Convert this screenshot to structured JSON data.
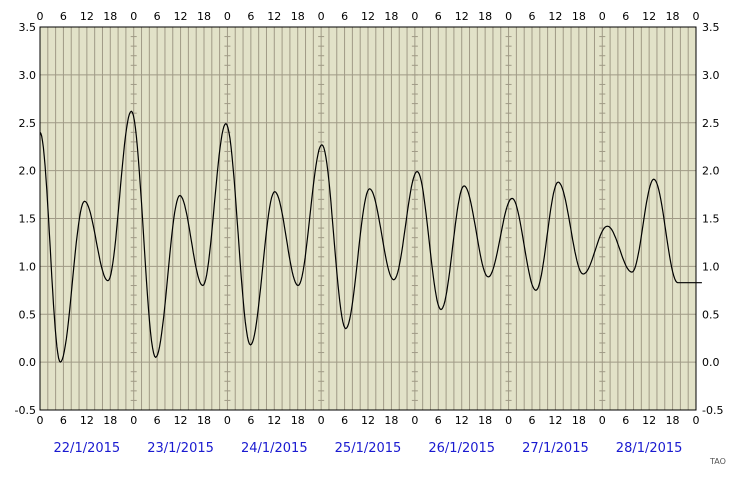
{
  "chart_data": {
    "type": "line",
    "title": "",
    "xlabel": "",
    "ylabel": "",
    "ylim": [
      -0.5,
      3.5
    ],
    "y_ticks": [
      "-0.5",
      "0.0",
      "0.5",
      "1.0",
      "1.5",
      "2.0",
      "2.5",
      "3.0",
      "3.5"
    ],
    "hour_ticks": [
      "0",
      "6",
      "12",
      "18"
    ],
    "days": [
      "22/1/2015",
      "23/1/2015",
      "24/1/2015",
      "25/1/2015",
      "26/1/2015",
      "27/1/2015",
      "28/1/2015"
    ],
    "grid": true,
    "colors": {
      "background": "#e2e2c8",
      "grid": "#a09a86",
      "line": "#000000",
      "dates": "#1a1ad0"
    },
    "series": [
      {
        "x": [
          0,
          5.2,
          11.4,
          17.4,
          23.4,
          29.6,
          35.8,
          41.7,
          47.6,
          53.9,
          60.1,
          66.1,
          72.2,
          78.3,
          84.4,
          90.6,
          96.6,
          102.7,
          108.6,
          114.8,
          120.9,
          127.0,
          132.7,
          139.1,
          145.3,
          151.6,
          157.2,
          163.3,
          169.5
        ],
        "y": [
          2.4,
          0.0,
          1.68,
          0.85,
          2.62,
          0.05,
          1.74,
          0.8,
          2.49,
          0.18,
          1.78,
          0.8,
          2.27,
          0.35,
          1.81,
          0.86,
          1.99,
          0.55,
          1.84,
          0.89,
          1.71,
          0.75,
          1.88,
          0.92,
          1.42,
          0.94,
          1.91,
          0.83,
          0.83
        ]
      }
    ],
    "credit": "TAO"
  }
}
